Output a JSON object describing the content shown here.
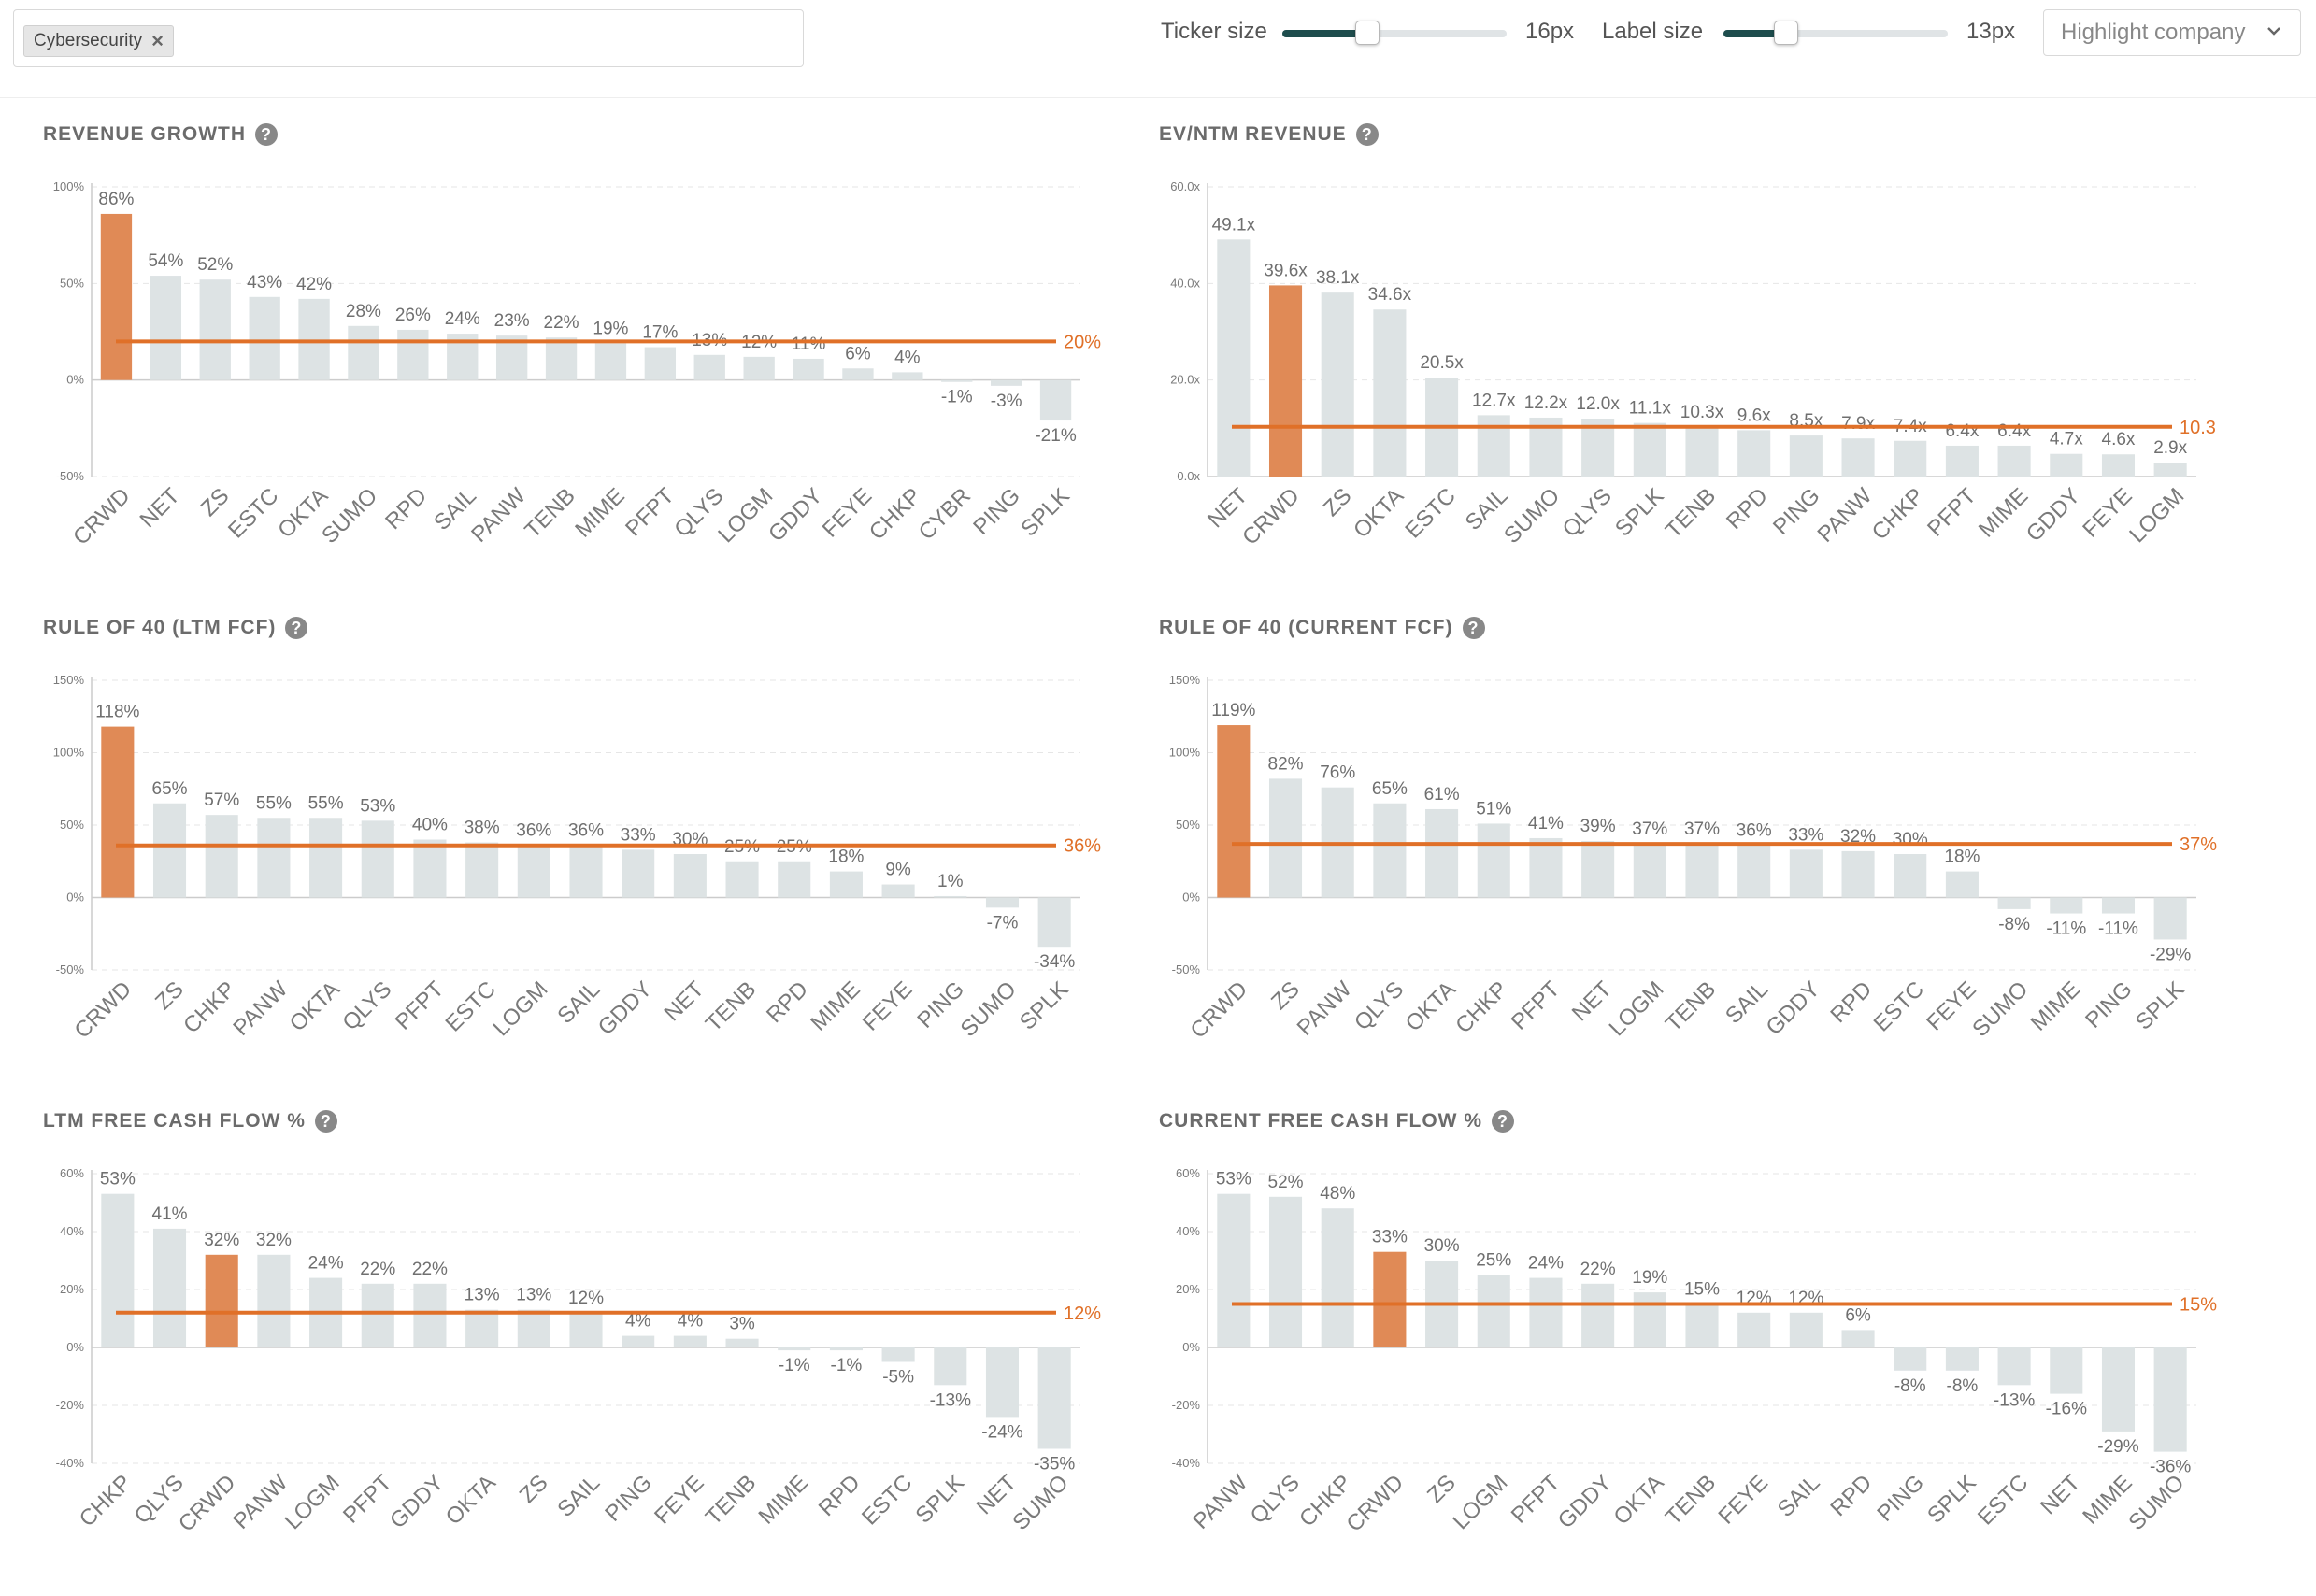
{
  "filter": {
    "tag_label": "Cybersecurity",
    "remove_glyph": "×"
  },
  "controls": {
    "ticker_size_label": "Ticker size",
    "ticker_size_value": "16px",
    "ticker_size_fraction": 0.38,
    "label_size_label": "Label size",
    "label_size_value": "13px",
    "label_size_fraction": 0.28,
    "highlight_placeholder": "Highlight company"
  },
  "colors": {
    "highlight": "#e08a56",
    "bar": "#dde3e4",
    "average_line": "#e07028",
    "axis": "#cccccc",
    "grid": "#e6e6e6",
    "tick_text": "#7a7a7a",
    "value_text": "#6f6f6f"
  },
  "highlight_company": "CRWD",
  "panels": [
    {
      "title": "REVENUE GROWTH",
      "help_icon": "question-circle-icon"
    },
    {
      "title": "EV/NTM REVENUE",
      "help_icon": "question-circle-icon"
    },
    {
      "title": "RULE OF 40 (LTM FCF)",
      "help_icon": "question-circle-icon"
    },
    {
      "title": "RULE OF 40 (CURRENT FCF)",
      "help_icon": "question-circle-icon"
    },
    {
      "title": "LTM FREE CASH FLOW %",
      "help_icon": "question-circle-icon"
    },
    {
      "title": "CURRENT FREE CASH FLOW %",
      "help_icon": "question-circle-icon"
    }
  ],
  "chart_data": [
    {
      "type": "bar",
      "title": "REVENUE GROWTH",
      "categories": [
        "CRWD",
        "NET",
        "ZS",
        "ESTC",
        "OKTA",
        "SUMO",
        "RPD",
        "SAIL",
        "PANW",
        "TENB",
        "MIME",
        "PFPT",
        "QLYS",
        "LOGM",
        "GDDY",
        "FEYE",
        "CHKP",
        "CYBR",
        "PING",
        "SPLK"
      ],
      "values": [
        86,
        54,
        52,
        43,
        42,
        28,
        26,
        24,
        23,
        22,
        19,
        17,
        13,
        12,
        11,
        6,
        4,
        -1,
        -3,
        -21
      ],
      "value_labels": [
        "86%",
        "54%",
        "52%",
        "43%",
        "42%",
        "28%",
        "26%",
        "24%",
        "23%",
        "22%",
        "19%",
        "17%",
        "13%",
        "12%",
        "11%",
        "6%",
        "4%",
        "-1%",
        "-3%",
        "-21%"
      ],
      "yticks": [
        100,
        50,
        0,
        -50
      ],
      "ytick_labels": [
        "100%",
        "50%",
        "0%",
        "-50%"
      ],
      "ylim": [
        -50,
        100
      ],
      "average": 20,
      "average_label": "20%"
    },
    {
      "type": "bar",
      "title": "EV/NTM REVENUE",
      "categories": [
        "NET",
        "CRWD",
        "ZS",
        "OKTA",
        "ESTC",
        "SAIL",
        "SUMO",
        "QLYS",
        "SPLK",
        "TENB",
        "RPD",
        "PING",
        "PANW",
        "CHKP",
        "PFPT",
        "MIME",
        "GDDY",
        "FEYE",
        "LOGM"
      ],
      "values": [
        49.1,
        39.6,
        38.1,
        34.6,
        20.5,
        12.7,
        12.2,
        12.0,
        11.1,
        10.3,
        9.6,
        8.5,
        7.9,
        7.4,
        6.4,
        6.4,
        4.7,
        4.6,
        2.9
      ],
      "value_labels": [
        "49.1x",
        "39.6x",
        "38.1x",
        "34.6x",
        "20.5x",
        "12.7x",
        "12.2x",
        "12.0x",
        "11.1x",
        "10.3x",
        "9.6x",
        "8.5x",
        "7.9x",
        "7.4x",
        "6.4x",
        "6.4x",
        "4.7x",
        "4.6x",
        "2.9x"
      ],
      "yticks": [
        60,
        40,
        20,
        0
      ],
      "ytick_labels": [
        "60.0x",
        "40.0x",
        "20.0x",
        "0.0x"
      ],
      "ylim": [
        0,
        60
      ],
      "average": 10.3,
      "average_label": "10.3"
    },
    {
      "type": "bar",
      "title": "RULE OF 40 (LTM FCF)",
      "categories": [
        "CRWD",
        "ZS",
        "CHKP",
        "PANW",
        "OKTA",
        "QLYS",
        "PFPT",
        "ESTC",
        "LOGM",
        "SAIL",
        "GDDY",
        "NET",
        "TENB",
        "RPD",
        "MIME",
        "FEYE",
        "PING",
        "SUMO",
        "SPLK"
      ],
      "values": [
        118,
        65,
        57,
        55,
        55,
        53,
        40,
        38,
        36,
        36,
        33,
        30,
        25,
        25,
        18,
        9,
        1,
        -7,
        -34
      ],
      "value_labels": [
        "118%",
        "65%",
        "57%",
        "55%",
        "55%",
        "53%",
        "40%",
        "38%",
        "36%",
        "36%",
        "33%",
        "30%",
        "25%",
        "25%",
        "18%",
        "9%",
        "1%",
        "-7%",
        "-34%"
      ],
      "yticks": [
        150,
        100,
        50,
        0,
        -50
      ],
      "ytick_labels": [
        "150%",
        "100%",
        "50%",
        "0%",
        "-50%"
      ],
      "ylim": [
        -50,
        150
      ],
      "average": 36,
      "average_label": "36%"
    },
    {
      "type": "bar",
      "title": "RULE OF 40 (CURRENT FCF)",
      "categories": [
        "CRWD",
        "ZS",
        "PANW",
        "QLYS",
        "OKTA",
        "CHKP",
        "PFPT",
        "NET",
        "LOGM",
        "TENB",
        "SAIL",
        "GDDY",
        "RPD",
        "ESTC",
        "FEYE",
        "SUMO",
        "MIME",
        "PING",
        "SPLK"
      ],
      "values": [
        119,
        82,
        76,
        65,
        61,
        51,
        41,
        39,
        37,
        37,
        36,
        33,
        32,
        30,
        18,
        -8,
        -11,
        -11,
        -29
      ],
      "value_labels": [
        "119%",
        "82%",
        "76%",
        "65%",
        "61%",
        "51%",
        "41%",
        "39%",
        "37%",
        "37%",
        "36%",
        "33%",
        "32%",
        "30%",
        "18%",
        "-8%",
        "-11%",
        "-11%",
        "-29%"
      ],
      "yticks": [
        150,
        100,
        50,
        0,
        -50
      ],
      "ytick_labels": [
        "150%",
        "100%",
        "50%",
        "0%",
        "-50%"
      ],
      "ylim": [
        -50,
        150
      ],
      "average": 37,
      "average_label": "37%"
    },
    {
      "type": "bar",
      "title": "LTM FREE CASH FLOW %",
      "categories": [
        "CHKP",
        "QLYS",
        "CRWD",
        "PANW",
        "LOGM",
        "PFPT",
        "GDDY",
        "OKTA",
        "ZS",
        "SAIL",
        "PING",
        "FEYE",
        "TENB",
        "MIME",
        "RPD",
        "ESTC",
        "SPLK",
        "NET",
        "SUMO"
      ],
      "values": [
        53,
        41,
        32,
        32,
        24,
        22,
        22,
        13,
        13,
        12,
        4,
        4,
        3,
        -1,
        -1,
        -5,
        -13,
        -24,
        -35
      ],
      "value_labels": [
        "53%",
        "41%",
        "32%",
        "32%",
        "24%",
        "22%",
        "22%",
        "13%",
        "13%",
        "12%",
        "4%",
        "4%",
        "3%",
        "-1%",
        "-1%",
        "-5%",
        "-13%",
        "-24%",
        "-35%"
      ],
      "yticks": [
        60,
        40,
        20,
        0,
        -20,
        -40
      ],
      "ytick_labels": [
        "60%",
        "40%",
        "20%",
        "0%",
        "-20%",
        "-40%"
      ],
      "ylim": [
        -40,
        60
      ],
      "average": 12,
      "average_label": "12%"
    },
    {
      "type": "bar",
      "title": "CURRENT FREE CASH FLOW %",
      "categories": [
        "PANW",
        "QLYS",
        "CHKP",
        "CRWD",
        "ZS",
        "LOGM",
        "PFPT",
        "GDDY",
        "OKTA",
        "TENB",
        "FEYE",
        "SAIL",
        "RPD",
        "PING",
        "SPLK",
        "ESTC",
        "NET",
        "MIME",
        "SUMO"
      ],
      "values": [
        53,
        52,
        48,
        33,
        30,
        25,
        24,
        22,
        19,
        15,
        12,
        12,
        6,
        -8,
        -8,
        -13,
        -16,
        -29,
        -36
      ],
      "value_labels": [
        "53%",
        "52%",
        "48%",
        "33%",
        "30%",
        "25%",
        "24%",
        "22%",
        "19%",
        "15%",
        "12%",
        "12%",
        "6%",
        "-8%",
        "-8%",
        "-13%",
        "-16%",
        "-29%",
        "-36%"
      ],
      "yticks": [
        60,
        40,
        20,
        0,
        -20,
        -40
      ],
      "ytick_labels": [
        "60%",
        "40%",
        "20%",
        "0%",
        "-20%",
        "-40%"
      ],
      "ylim": [
        -40,
        60
      ],
      "average": 15,
      "average_label": "15%"
    }
  ]
}
